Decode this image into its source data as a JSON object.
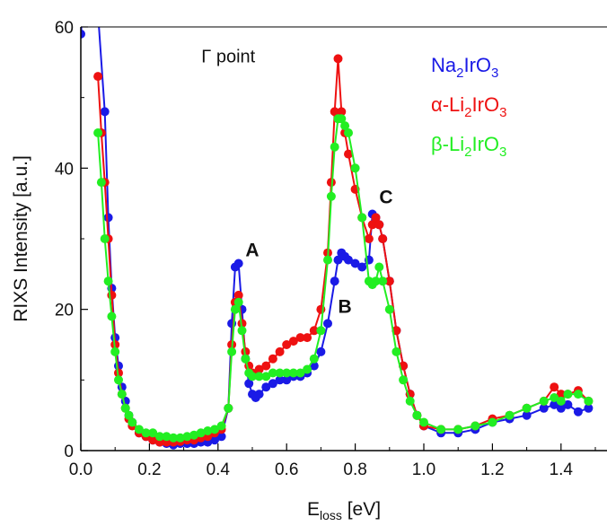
{
  "chart_data": {
    "type": "scatter",
    "title": "",
    "xlabel": "E",
    "xlabel_sub": "loss",
    "xlabel_unit": " [eV]",
    "ylabel": "RIXS Intensity [a.u.]",
    "xlim": [
      0.0,
      1.5
    ],
    "ylim": [
      0,
      60
    ],
    "x_ticks": [
      "0.0",
      "0.2",
      "0.4",
      "0.6",
      "0.8",
      "1.0",
      "1.2",
      "1.4"
    ],
    "y_ticks": [
      "0",
      "20",
      "40",
      "60"
    ],
    "annotations": [
      {
        "text": "Γ point",
        "x": 0.43,
        "y": 55
      },
      {
        "text": "A",
        "x": 0.5,
        "y": 27.5
      },
      {
        "text": "B",
        "x": 0.77,
        "y": 19.5
      },
      {
        "text": "C",
        "x": 0.89,
        "y": 35
      }
    ],
    "legend_position": "top-right",
    "series": [
      {
        "name": "Na2IrO3",
        "legend_parts": [
          [
            "Na",
            ""
          ],
          [
            "2",
            "sub"
          ],
          [
            "IrO",
            ""
          ],
          [
            "3",
            "sub"
          ]
        ],
        "color": "#1a1ae6",
        "points": [
          [
            0.0,
            59
          ],
          [
            0.02,
            70
          ],
          [
            0.05,
            62
          ],
          [
            0.07,
            48
          ],
          [
            0.08,
            33
          ],
          [
            0.09,
            23
          ],
          [
            0.1,
            16
          ],
          [
            0.11,
            12
          ],
          [
            0.12,
            9
          ],
          [
            0.13,
            7
          ],
          [
            0.14,
            5
          ],
          [
            0.15,
            4
          ],
          [
            0.17,
            2.5
          ],
          [
            0.19,
            2
          ],
          [
            0.21,
            1.5
          ],
          [
            0.23,
            1.2
          ],
          [
            0.25,
            1
          ],
          [
            0.27,
            0.8
          ],
          [
            0.29,
            1
          ],
          [
            0.31,
            1
          ],
          [
            0.33,
            1
          ],
          [
            0.35,
            1.2
          ],
          [
            0.37,
            1.2
          ],
          [
            0.39,
            1.5
          ],
          [
            0.41,
            2
          ],
          [
            0.43,
            6
          ],
          [
            0.44,
            18
          ],
          [
            0.45,
            26
          ],
          [
            0.46,
            26.5
          ],
          [
            0.47,
            20
          ],
          [
            0.48,
            13
          ],
          [
            0.49,
            9.5
          ],
          [
            0.5,
            8
          ],
          [
            0.51,
            7.5
          ],
          [
            0.52,
            8
          ],
          [
            0.54,
            9
          ],
          [
            0.56,
            9.5
          ],
          [
            0.58,
            10
          ],
          [
            0.6,
            10
          ],
          [
            0.62,
            10.5
          ],
          [
            0.64,
            10.5
          ],
          [
            0.66,
            11
          ],
          [
            0.68,
            12
          ],
          [
            0.7,
            14
          ],
          [
            0.72,
            18
          ],
          [
            0.74,
            24
          ],
          [
            0.75,
            27
          ],
          [
            0.76,
            28
          ],
          [
            0.77,
            27.5
          ],
          [
            0.78,
            27
          ],
          [
            0.8,
            26.5
          ],
          [
            0.82,
            26
          ],
          [
            0.84,
            27
          ],
          [
            0.85,
            33.5
          ],
          [
            0.86,
            33
          ],
          [
            0.87,
            32
          ],
          [
            0.88,
            30
          ],
          [
            0.9,
            24
          ],
          [
            0.92,
            17
          ],
          [
            0.94,
            12
          ],
          [
            0.96,
            8
          ],
          [
            0.98,
            5
          ],
          [
            1.0,
            3.5
          ],
          [
            1.05,
            2.5
          ],
          [
            1.1,
            2.5
          ],
          [
            1.15,
            3
          ],
          [
            1.2,
            4
          ],
          [
            1.25,
            4.5
          ],
          [
            1.3,
            5
          ],
          [
            1.35,
            6
          ],
          [
            1.38,
            6.5
          ],
          [
            1.4,
            6
          ],
          [
            1.42,
            6.5
          ],
          [
            1.45,
            5.5
          ],
          [
            1.48,
            6
          ]
        ]
      },
      {
        "name": "α-Li2IrO3",
        "legend_parts": [
          [
            "α-Li",
            ""
          ],
          [
            "2",
            "sub"
          ],
          [
            "IrO",
            ""
          ],
          [
            "3",
            "sub"
          ]
        ],
        "color": "#ee1111",
        "points": [
          [
            0.05,
            53
          ],
          [
            0.06,
            45
          ],
          [
            0.07,
            38
          ],
          [
            0.08,
            30
          ],
          [
            0.09,
            22
          ],
          [
            0.1,
            15
          ],
          [
            0.11,
            11
          ],
          [
            0.12,
            8
          ],
          [
            0.13,
            6
          ],
          [
            0.14,
            4.5
          ],
          [
            0.15,
            3.5
          ],
          [
            0.17,
            2.5
          ],
          [
            0.19,
            2
          ],
          [
            0.21,
            1.5
          ],
          [
            0.23,
            1.2
          ],
          [
            0.25,
            1.2
          ],
          [
            0.27,
            1.2
          ],
          [
            0.29,
            1.3
          ],
          [
            0.31,
            1.5
          ],
          [
            0.33,
            1.5
          ],
          [
            0.35,
            1.8
          ],
          [
            0.37,
            2
          ],
          [
            0.39,
            2.5
          ],
          [
            0.41,
            3
          ],
          [
            0.43,
            6
          ],
          [
            0.44,
            15
          ],
          [
            0.45,
            21
          ],
          [
            0.46,
            22
          ],
          [
            0.47,
            18
          ],
          [
            0.48,
            14
          ],
          [
            0.49,
            12
          ],
          [
            0.5,
            11
          ],
          [
            0.52,
            11.5
          ],
          [
            0.54,
            12
          ],
          [
            0.56,
            13
          ],
          [
            0.58,
            14
          ],
          [
            0.6,
            15
          ],
          [
            0.62,
            15.5
          ],
          [
            0.64,
            16
          ],
          [
            0.66,
            16
          ],
          [
            0.68,
            17
          ],
          [
            0.7,
            20
          ],
          [
            0.72,
            28
          ],
          [
            0.73,
            38
          ],
          [
            0.74,
            48
          ],
          [
            0.75,
            55.5
          ],
          [
            0.76,
            48
          ],
          [
            0.77,
            45
          ],
          [
            0.78,
            42
          ],
          [
            0.8,
            37
          ],
          [
            0.82,
            33
          ],
          [
            0.84,
            30
          ],
          [
            0.85,
            32
          ],
          [
            0.86,
            33
          ],
          [
            0.87,
            32
          ],
          [
            0.88,
            30
          ],
          [
            0.9,
            24
          ],
          [
            0.92,
            17
          ],
          [
            0.94,
            12
          ],
          [
            0.96,
            8
          ],
          [
            0.98,
            5
          ],
          [
            1.0,
            3.5
          ],
          [
            1.05,
            3
          ],
          [
            1.1,
            3
          ],
          [
            1.15,
            3.5
          ],
          [
            1.2,
            4.5
          ],
          [
            1.25,
            5
          ],
          [
            1.3,
            6
          ],
          [
            1.35,
            7
          ],
          [
            1.38,
            9
          ],
          [
            1.4,
            8
          ],
          [
            1.42,
            8
          ],
          [
            1.45,
            8.5
          ],
          [
            1.48,
            7
          ]
        ]
      },
      {
        "name": "β-Li2IrO3",
        "legend_parts": [
          [
            "β-Li",
            ""
          ],
          [
            "2",
            "sub"
          ],
          [
            "IrO",
            ""
          ],
          [
            "3",
            "sub"
          ]
        ],
        "color": "#22ee22",
        "points": [
          [
            0.05,
            45
          ],
          [
            0.06,
            38
          ],
          [
            0.07,
            30
          ],
          [
            0.08,
            24
          ],
          [
            0.09,
            19
          ],
          [
            0.1,
            14
          ],
          [
            0.11,
            10
          ],
          [
            0.12,
            8
          ],
          [
            0.13,
            6
          ],
          [
            0.14,
            5
          ],
          [
            0.15,
            4
          ],
          [
            0.17,
            3
          ],
          [
            0.19,
            2.5
          ],
          [
            0.21,
            2.5
          ],
          [
            0.23,
            2
          ],
          [
            0.25,
            2
          ],
          [
            0.27,
            1.8
          ],
          [
            0.29,
            1.8
          ],
          [
            0.31,
            2
          ],
          [
            0.33,
            2.2
          ],
          [
            0.35,
            2.5
          ],
          [
            0.37,
            2.8
          ],
          [
            0.39,
            3
          ],
          [
            0.41,
            3.5
          ],
          [
            0.43,
            6
          ],
          [
            0.44,
            14
          ],
          [
            0.45,
            20
          ],
          [
            0.46,
            21
          ],
          [
            0.47,
            17
          ],
          [
            0.48,
            13
          ],
          [
            0.49,
            11
          ],
          [
            0.5,
            10.5
          ],
          [
            0.52,
            10.5
          ],
          [
            0.54,
            10.5
          ],
          [
            0.56,
            11
          ],
          [
            0.58,
            11
          ],
          [
            0.6,
            11
          ],
          [
            0.62,
            11
          ],
          [
            0.64,
            11
          ],
          [
            0.66,
            11.5
          ],
          [
            0.68,
            13
          ],
          [
            0.7,
            17
          ],
          [
            0.72,
            27
          ],
          [
            0.73,
            36
          ],
          [
            0.74,
            43
          ],
          [
            0.75,
            47
          ],
          [
            0.76,
            47
          ],
          [
            0.77,
            46
          ],
          [
            0.78,
            45
          ],
          [
            0.8,
            40
          ],
          [
            0.82,
            33
          ],
          [
            0.84,
            24
          ],
          [
            0.85,
            23.5
          ],
          [
            0.86,
            24
          ],
          [
            0.87,
            26
          ],
          [
            0.88,
            24
          ],
          [
            0.9,
            20
          ],
          [
            0.92,
            14
          ],
          [
            0.94,
            10
          ],
          [
            0.96,
            7
          ],
          [
            0.98,
            5
          ],
          [
            1.0,
            4
          ],
          [
            1.05,
            3
          ],
          [
            1.1,
            3
          ],
          [
            1.15,
            3.5
          ],
          [
            1.2,
            4
          ],
          [
            1.25,
            5
          ],
          [
            1.3,
            6
          ],
          [
            1.35,
            7
          ],
          [
            1.38,
            7.5
          ],
          [
            1.4,
            7
          ],
          [
            1.42,
            8
          ],
          [
            1.45,
            8
          ],
          [
            1.48,
            7
          ]
        ]
      }
    ]
  }
}
